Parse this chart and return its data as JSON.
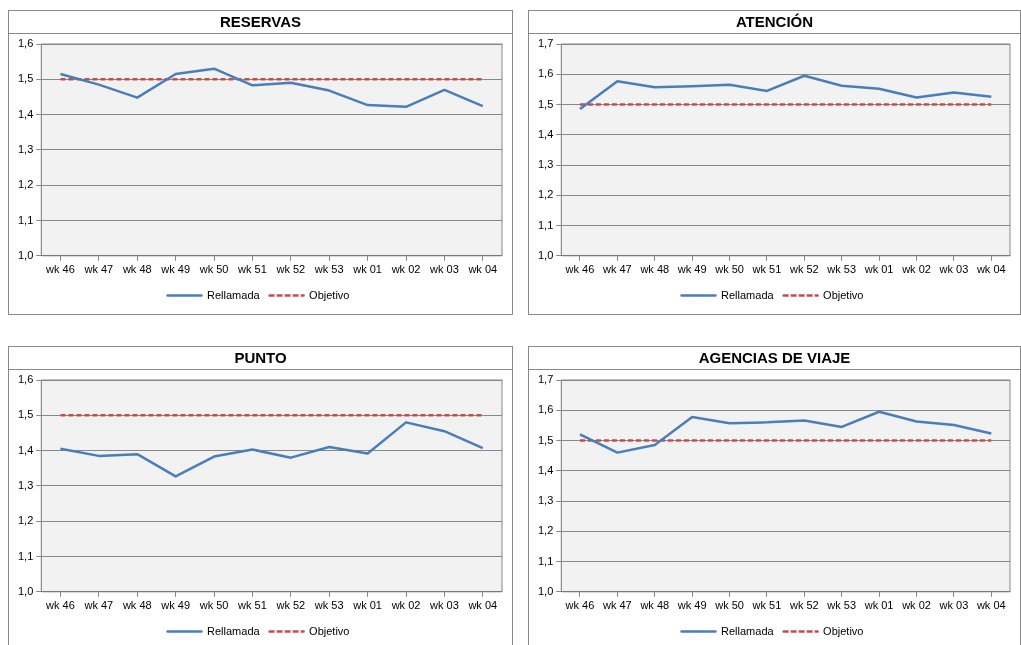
{
  "chart_data": [
    {
      "type": "line",
      "title": "RESERVAS",
      "categories": [
        "wk 46",
        "wk 47",
        "wk 48",
        "wk 49",
        "wk 50",
        "wk 51",
        "wk 52",
        "wk 53",
        "wk 01",
        "wk 02",
        "wk 03",
        "wk 04"
      ],
      "series": [
        {
          "name": "Rellamada",
          "color": "#4a7ebb",
          "line_style": "solid",
          "values": [
            1.515,
            1.485,
            1.448,
            1.515,
            1.53,
            1.483,
            1.49,
            1.468,
            1.427,
            1.422,
            1.47,
            1.424
          ]
        },
        {
          "name": "Objetivo",
          "color": "#c0504d",
          "line_style": "dashed",
          "values": [
            1.5,
            1.5,
            1.5,
            1.5,
            1.5,
            1.5,
            1.5,
            1.5,
            1.5,
            1.5,
            1.5,
            1.5
          ]
        }
      ],
      "ylim": [
        1.0,
        1.6
      ],
      "yticks": [
        {
          "value": 1.0,
          "label": "1,0"
        },
        {
          "value": 1.1,
          "label": "1,1"
        },
        {
          "value": 1.2,
          "label": "1,2"
        },
        {
          "value": 1.3,
          "label": "1,3"
        },
        {
          "value": 1.4,
          "label": "1,4"
        },
        {
          "value": 1.5,
          "label": "1,5"
        },
        {
          "value": 1.6,
          "label": "1,6"
        }
      ],
      "grid": "y",
      "legend": "bottom",
      "marker": "none"
    },
    {
      "type": "line",
      "title": "ATENCIÓN",
      "categories": [
        "wk 46",
        "wk 47",
        "wk 48",
        "wk 49",
        "wk 50",
        "wk 51",
        "wk 52",
        "wk 53",
        "wk 01",
        "wk 02",
        "wk 03",
        "wk 04"
      ],
      "series": [
        {
          "name": "Rellamada",
          "color": "#4a7ebb",
          "line_style": "solid",
          "values": [
            1.485,
            1.577,
            1.557,
            1.56,
            1.565,
            1.545,
            1.595,
            1.562,
            1.552,
            1.523,
            1.54,
            1.526
          ]
        },
        {
          "name": "Objetivo",
          "color": "#c0504d",
          "line_style": "dashed",
          "values": [
            1.5,
            1.5,
            1.5,
            1.5,
            1.5,
            1.5,
            1.5,
            1.5,
            1.5,
            1.5,
            1.5,
            1.5
          ]
        }
      ],
      "ylim": [
        1.0,
        1.7
      ],
      "yticks": [
        {
          "value": 1.0,
          "label": "1,0"
        },
        {
          "value": 1.1,
          "label": "1,1"
        },
        {
          "value": 1.2,
          "label": "1,2"
        },
        {
          "value": 1.3,
          "label": "1,3"
        },
        {
          "value": 1.4,
          "label": "1,4"
        },
        {
          "value": 1.5,
          "label": "1,5"
        },
        {
          "value": 1.6,
          "label": "1,6"
        },
        {
          "value": 1.7,
          "label": "1,7"
        }
      ],
      "grid": "y",
      "legend": "bottom",
      "marker": "none"
    },
    {
      "type": "line",
      "title": "PUNTO",
      "categories": [
        "wk 46",
        "wk 47",
        "wk 48",
        "wk 49",
        "wk 50",
        "wk 51",
        "wk 52",
        "wk 53",
        "wk 01",
        "wk 02",
        "wk 03",
        "wk 04"
      ],
      "series": [
        {
          "name": "Rellamada",
          "color": "#4a7ebb",
          "line_style": "solid",
          "values": [
            1.405,
            1.385,
            1.39,
            1.327,
            1.383,
            1.403,
            1.38,
            1.41,
            1.392,
            1.48,
            1.455,
            1.407
          ]
        },
        {
          "name": "Objetivo",
          "color": "#c0504d",
          "line_style": "dashed",
          "values": [
            1.5,
            1.5,
            1.5,
            1.5,
            1.5,
            1.5,
            1.5,
            1.5,
            1.5,
            1.5,
            1.5,
            1.5
          ]
        }
      ],
      "ylim": [
        1.0,
        1.6
      ],
      "yticks": [
        {
          "value": 1.0,
          "label": "1,0"
        },
        {
          "value": 1.1,
          "label": "1,1"
        },
        {
          "value": 1.2,
          "label": "1,2"
        },
        {
          "value": 1.3,
          "label": "1,3"
        },
        {
          "value": 1.4,
          "label": "1,4"
        },
        {
          "value": 1.5,
          "label": "1,5"
        },
        {
          "value": 1.6,
          "label": "1,6"
        }
      ],
      "grid": "y",
      "legend": "bottom",
      "marker": "none"
    },
    {
      "type": "line",
      "title": "AGENCIAS DE VIAJE",
      "categories": [
        "wk 46",
        "wk 47",
        "wk 48",
        "wk 49",
        "wk 50",
        "wk 51",
        "wk 52",
        "wk 53",
        "wk 01",
        "wk 02",
        "wk 03",
        "wk 04"
      ],
      "series": [
        {
          "name": "Rellamada",
          "color": "#4a7ebb",
          "line_style": "solid",
          "values": [
            1.52,
            1.46,
            1.485,
            1.578,
            1.557,
            1.56,
            1.566,
            1.545,
            1.595,
            1.563,
            1.551,
            1.523
          ]
        },
        {
          "name": "Objetivo",
          "color": "#c0504d",
          "line_style": "dashed",
          "values": [
            1.5,
            1.5,
            1.5,
            1.5,
            1.5,
            1.5,
            1.5,
            1.5,
            1.5,
            1.5,
            1.5,
            1.5
          ]
        }
      ],
      "ylim": [
        1.0,
        1.7
      ],
      "yticks": [
        {
          "value": 1.0,
          "label": "1,0"
        },
        {
          "value": 1.1,
          "label": "1,1"
        },
        {
          "value": 1.2,
          "label": "1,2"
        },
        {
          "value": 1.3,
          "label": "1,3"
        },
        {
          "value": 1.4,
          "label": "1,4"
        },
        {
          "value": 1.5,
          "label": "1,5"
        },
        {
          "value": 1.6,
          "label": "1,6"
        },
        {
          "value": 1.7,
          "label": "1,7"
        }
      ],
      "grid": "y",
      "legend": "bottom",
      "marker": "none"
    }
  ]
}
